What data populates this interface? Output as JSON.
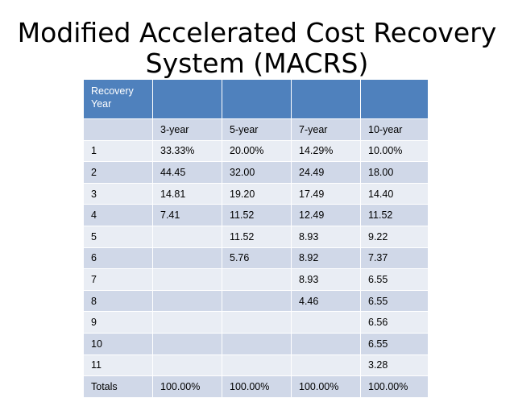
{
  "title": {
    "line1": "Modified Accelerated Cost Recovery",
    "line2": "System (MACRS)"
  },
  "table": {
    "header": [
      "Recovery Year",
      "",
      "",
      "",
      ""
    ],
    "rows": [
      [
        "",
        "3-year",
        "5-year",
        "7-year",
        "10-year"
      ],
      [
        "1",
        "33.33%",
        "20.00%",
        "14.29%",
        "10.00%"
      ],
      [
        "2",
        "44.45",
        "32.00",
        "24.49",
        "18.00"
      ],
      [
        "3",
        "14.81",
        "19.20",
        "17.49",
        "14.40"
      ],
      [
        "4",
        "7.41",
        "11.52",
        "12.49",
        "11.52"
      ],
      [
        "5",
        "",
        "11.52",
        "8.93",
        "9.22"
      ],
      [
        "6",
        "",
        "5.76",
        "8.92",
        "7.37"
      ],
      [
        "7",
        "",
        "",
        "8.93",
        "6.55"
      ],
      [
        "8",
        "",
        "",
        "4.46",
        "6.55"
      ],
      [
        "9",
        "",
        "",
        "",
        "6.56"
      ],
      [
        "10",
        "",
        "",
        "",
        "6.55"
      ],
      [
        "11",
        "",
        "",
        "",
        "3.28"
      ],
      [
        "Totals",
        "100.00%",
        "100.00%",
        "100.00%",
        "100.00%"
      ]
    ]
  },
  "colors": {
    "header_bg": "#4f81bd",
    "band_dark": "#d0d8e8",
    "band_light": "#e9edf4"
  }
}
